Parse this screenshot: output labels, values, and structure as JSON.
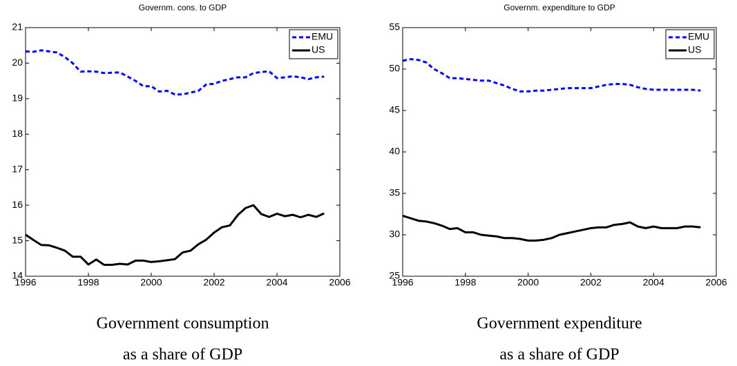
{
  "chart_data": [
    {
      "type": "line",
      "title": "Governm. cons. to GDP",
      "caption": [
        "Government consumption",
        "as a share of GDP"
      ],
      "x": [
        1996,
        1996.25,
        1996.5,
        1996.75,
        1997,
        1997.25,
        1997.5,
        1997.75,
        1998,
        1998.25,
        1998.5,
        1998.75,
        1999,
        1999.25,
        1999.5,
        1999.75,
        2000,
        2000.25,
        2000.5,
        2000.75,
        2001,
        2001.25,
        2001.5,
        2001.75,
        2002,
        2002.25,
        2002.5,
        2002.75,
        2003,
        2003.25,
        2003.5,
        2003.75,
        2004,
        2004.25,
        2004.5,
        2004.75,
        2005,
        2005.25,
        2005.5
      ],
      "series": [
        {
          "name": "EMU",
          "color": "#0000ff",
          "linestyle": "dashed",
          "values": [
            20.33,
            20.32,
            20.36,
            20.33,
            20.3,
            20.17,
            20.0,
            19.76,
            19.77,
            19.76,
            19.72,
            19.73,
            19.74,
            19.62,
            19.5,
            19.35,
            19.35,
            19.2,
            19.22,
            19.12,
            19.12,
            19.17,
            19.22,
            19.4,
            19.42,
            19.5,
            19.55,
            19.6,
            19.6,
            19.72,
            19.75,
            19.77,
            19.58,
            19.6,
            19.63,
            19.6,
            19.55,
            19.6,
            19.62
          ]
        },
        {
          "name": "US",
          "color": "#000000",
          "linestyle": "solid",
          "values": [
            15.17,
            15.02,
            14.88,
            14.87,
            14.8,
            14.72,
            14.55,
            14.55,
            14.33,
            14.47,
            14.32,
            14.32,
            14.35,
            14.33,
            14.44,
            14.44,
            14.4,
            14.42,
            14.45,
            14.48,
            14.67,
            14.72,
            14.9,
            15.03,
            15.23,
            15.38,
            15.43,
            15.72,
            15.92,
            16.0,
            15.75,
            15.67,
            15.76,
            15.69,
            15.73,
            15.66,
            15.73,
            15.67,
            15.77
          ]
        }
      ],
      "xlim": [
        1996,
        2006
      ],
      "xticks": [
        1996,
        1998,
        2000,
        2002,
        2004,
        2006
      ],
      "ylim": [
        14,
        21
      ],
      "yticks": [
        14,
        15,
        16,
        17,
        18,
        19,
        20,
        21
      ],
      "legend": "upper right"
    },
    {
      "type": "line",
      "title": "Governm. expenditure to GDP",
      "caption": [
        "Government expenditure",
        "as a share of GDP"
      ],
      "x": [
        1996,
        1996.25,
        1996.5,
        1996.75,
        1997,
        1997.25,
        1997.5,
        1997.75,
        1998,
        1998.25,
        1998.5,
        1998.75,
        1999,
        1999.25,
        1999.5,
        1999.75,
        2000,
        2000.25,
        2000.5,
        2000.75,
        2001,
        2001.25,
        2001.5,
        2001.75,
        2002,
        2002.25,
        2002.5,
        2002.75,
        2003,
        2003.25,
        2003.5,
        2003.75,
        2004,
        2004.25,
        2004.5,
        2004.75,
        2005,
        2005.25,
        2005.5
      ],
      "series": [
        {
          "name": "EMU",
          "color": "#0000ff",
          "linestyle": "dashed",
          "values": [
            51.0,
            51.2,
            51.1,
            50.8,
            50.0,
            49.5,
            48.9,
            48.9,
            48.8,
            48.7,
            48.6,
            48.6,
            48.3,
            48.0,
            47.6,
            47.3,
            47.3,
            47.4,
            47.4,
            47.5,
            47.6,
            47.7,
            47.7,
            47.7,
            47.7,
            47.9,
            48.1,
            48.2,
            48.2,
            48.1,
            47.8,
            47.6,
            47.5,
            47.5,
            47.5,
            47.5,
            47.5,
            47.5,
            47.4
          ]
        },
        {
          "name": "US",
          "color": "#000000",
          "linestyle": "solid",
          "values": [
            32.3,
            32.0,
            31.7,
            31.6,
            31.4,
            31.1,
            30.7,
            30.8,
            30.3,
            30.3,
            30.0,
            29.9,
            29.8,
            29.6,
            29.6,
            29.5,
            29.3,
            29.3,
            29.4,
            29.6,
            30.0,
            30.2,
            30.4,
            30.6,
            30.8,
            30.9,
            30.9,
            31.2,
            31.3,
            31.5,
            31.0,
            30.8,
            31.0,
            30.8,
            30.8,
            30.8,
            31.0,
            31.0,
            30.9
          ]
        }
      ],
      "xlim": [
        1996,
        2006
      ],
      "xticks": [
        1996,
        1998,
        2000,
        2002,
        2004,
        2006
      ],
      "ylim": [
        25,
        55
      ],
      "yticks": [
        25,
        30,
        35,
        40,
        45,
        50,
        55
      ],
      "legend": "upper right"
    }
  ]
}
